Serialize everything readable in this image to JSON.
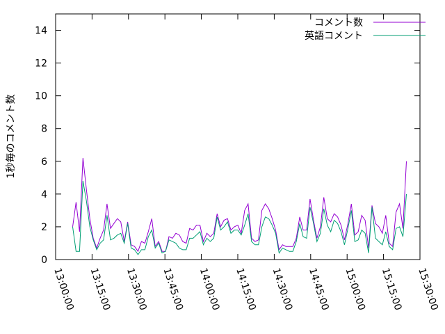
{
  "chart_data": {
    "type": "line",
    "ylabel": "1秒毎のコメント数",
    "x": [
      "13:07:00",
      "13:08:25",
      "13:09:50",
      "13:11:15",
      "13:12:40",
      "13:14:05",
      "13:15:30",
      "13:16:55",
      "13:18:20",
      "13:19:45",
      "13:21:10",
      "13:22:35",
      "13:24:00",
      "13:25:25",
      "13:26:50",
      "13:28:15",
      "13:29:40",
      "13:31:05",
      "13:32:30",
      "13:33:55",
      "13:35:20",
      "13:36:45",
      "13:38:10",
      "13:39:35",
      "13:41:00",
      "13:42:25",
      "13:43:50",
      "13:45:15",
      "13:46:40",
      "13:48:05",
      "13:49:30",
      "13:50:55",
      "13:52:20",
      "13:53:45",
      "13:55:10",
      "13:56:35",
      "13:58:00",
      "13:59:25",
      "14:00:50",
      "14:02:15",
      "14:03:40",
      "14:05:05",
      "14:06:30",
      "14:07:55",
      "14:09:20",
      "14:10:45",
      "14:12:10",
      "14:13:35",
      "14:15:00",
      "14:16:25",
      "14:17:50",
      "14:19:15",
      "14:20:40",
      "14:22:05",
      "14:23:30",
      "14:24:55",
      "14:26:20",
      "14:27:45",
      "14:29:10",
      "14:30:35",
      "14:32:00",
      "14:33:25",
      "14:34:50",
      "14:36:15",
      "14:37:40",
      "14:39:05",
      "14:40:30",
      "14:41:55",
      "14:43:20",
      "14:44:45",
      "14:46:10",
      "14:47:35",
      "14:49:00",
      "14:50:25",
      "14:51:50",
      "14:53:15",
      "14:54:40",
      "14:56:05",
      "14:57:30",
      "14:58:55",
      "15:00:20",
      "15:01:45",
      "15:03:10",
      "15:04:35",
      "15:06:00",
      "15:07:25",
      "15:08:50",
      "15:10:15",
      "15:11:40",
      "15:13:05",
      "15:14:30",
      "15:15:55",
      "15:17:20",
      "15:18:45",
      "15:20:10",
      "15:21:35",
      "15:23:00",
      "15:24:25"
    ],
    "series": [
      {
        "name": "コメント数",
        "color": "#9400d3",
        "values": [
          2.0,
          3.5,
          1.7,
          6.2,
          4.3,
          2.5,
          1.3,
          0.7,
          1.3,
          1.8,
          3.4,
          1.9,
          2.2,
          2.5,
          2.3,
          1.1,
          2.3,
          0.9,
          0.8,
          0.5,
          1.1,
          1.0,
          1.7,
          2.5,
          0.8,
          1.1,
          0.5,
          0.5,
          1.4,
          1.3,
          1.6,
          1.5,
          1.1,
          1.0,
          1.9,
          1.8,
          2.1,
          2.1,
          1.1,
          1.6,
          1.4,
          1.6,
          2.8,
          2.0,
          2.4,
          2.5,
          1.8,
          2.0,
          2.1,
          1.6,
          3.0,
          3.4,
          1.3,
          1.1,
          1.2,
          3.0,
          3.4,
          3.1,
          2.5,
          1.8,
          0.6,
          0.9,
          0.8,
          0.8,
          0.8,
          1.3,
          2.6,
          1.8,
          1.8,
          3.7,
          2.4,
          1.3,
          2.0,
          3.8,
          2.5,
          2.3,
          2.8,
          2.6,
          2.1,
          1.2,
          2.2,
          3.4,
          1.5,
          1.7,
          2.7,
          2.4,
          0.7,
          3.3,
          2.2,
          2.0,
          1.6,
          2.7,
          1.0,
          0.8,
          2.9,
          3.4,
          1.9,
          6.0
        ]
      },
      {
        "name": "英語コメント",
        "color": "#009e73",
        "values": [
          2.0,
          0.5,
          0.5,
          4.8,
          3.6,
          2.0,
          1.2,
          0.6,
          1.0,
          1.2,
          2.7,
          1.2,
          1.3,
          1.5,
          1.6,
          1.0,
          2.2,
          0.7,
          0.6,
          0.3,
          0.6,
          0.6,
          1.4,
          1.8,
          0.7,
          1.0,
          0.4,
          0.5,
          1.2,
          1.1,
          1.0,
          0.7,
          0.6,
          0.6,
          1.3,
          1.3,
          1.5,
          1.7,
          0.9,
          1.3,
          1.1,
          1.3,
          2.6,
          1.8,
          2.0,
          2.3,
          1.6,
          1.8,
          1.8,
          1.5,
          2.1,
          2.8,
          1.1,
          0.9,
          0.9,
          2.0,
          2.6,
          2.5,
          2.1,
          1.6,
          0.4,
          0.7,
          0.6,
          0.5,
          0.5,
          1.1,
          2.2,
          1.4,
          1.3,
          3.2,
          2.2,
          1.1,
          1.6,
          3.1,
          2.1,
          1.7,
          2.4,
          2.2,
          1.7,
          0.9,
          1.9,
          3.0,
          1.1,
          1.2,
          1.8,
          1.6,
          0.4,
          3.2,
          1.3,
          1.1,
          0.9,
          1.7,
          0.8,
          0.6,
          1.9,
          2.0,
          1.4,
          4.0
        ]
      }
    ],
    "xlim": [
      "13:00:00",
      "15:30:00"
    ],
    "xticks": [
      "13:00:00",
      "13:15:00",
      "13:30:00",
      "13:45:00",
      "14:00:00",
      "14:15:00",
      "14:30:00",
      "14:45:00",
      "15:00:00",
      "15:15:00",
      "15:30:00"
    ],
    "ylim": [
      0,
      15
    ],
    "yticks": [
      0,
      2,
      4,
      6,
      8,
      10,
      12,
      14
    ],
    "grid": false,
    "legend": "top-right"
  }
}
